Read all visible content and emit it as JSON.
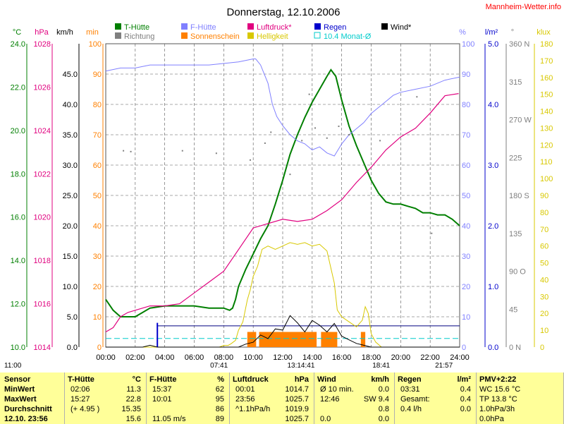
{
  "title": "Donnerstag, 12.10.2006",
  "site": "Mannheim-Wetter.info",
  "colors": {
    "temp": "#007f00",
    "ftemp": "#8080ff",
    "pressure": "#e0007f",
    "sun": "#ff8000",
    "light": "#d8c800",
    "rain": "#0000cc",
    "rain_avg": "#00cccc",
    "wind": "#000000",
    "direction": "#7f7f7f",
    "table_bg": "#ffff99",
    "grid": "#555555"
  },
  "legend": [
    {
      "label": "T-Hütte",
      "color": "#007f00",
      "style": "solid"
    },
    {
      "label": "F-Hütte",
      "color": "#8080ff",
      "style": "solid"
    },
    {
      "label": "Luftdruck*",
      "color": "#e0007f",
      "style": "solid"
    },
    {
      "label": "Regen",
      "color": "#0000cc",
      "style": "solid"
    },
    {
      "label": "Wind*",
      "color": "#000000",
      "style": "solid"
    },
    {
      "label": "Richtung",
      "color": "#7f7f7f",
      "style": "solid"
    },
    {
      "label": "Sonnenschein",
      "color": "#ff8000",
      "style": "solid"
    },
    {
      "label": "Helligkeit",
      "color": "#d8c800",
      "style": "solid"
    },
    {
      "label": "10.4 Monat-Ø",
      "color": "#00cccc",
      "style": "outline"
    }
  ],
  "axes_headers": {
    "temp": "°C",
    "pressure": "hPa",
    "wind": "km/h",
    "sun_min": "min",
    "humidity": "%",
    "rain": "l/m²",
    "direction": "°",
    "light": "klux"
  },
  "axes": {
    "temp": [
      "24.0",
      "22.0",
      "20.0",
      "18.0",
      "16.0",
      "14.0",
      "12.0",
      "10.0"
    ],
    "pressure": [
      "1028",
      "1026",
      "1024",
      "1022",
      "1020",
      "1018",
      "1016",
      "1014"
    ],
    "wind": [
      "45.0",
      "40.0",
      "35.0",
      "30.0",
      "25.0",
      "20.0",
      "15.0",
      "10.0",
      "5.0",
      "0.0"
    ],
    "sun_min": [
      "100",
      "90",
      "80",
      "70",
      "60",
      "50",
      "40",
      "30",
      "20",
      "10",
      "0"
    ],
    "humidity": [
      "100",
      "90",
      "80",
      "70",
      "60",
      "50",
      "40",
      "30",
      "20",
      "10",
      "0"
    ],
    "rain": [
      "5.0",
      "4.0",
      "3.0",
      "2.0",
      "1.0",
      "0.0"
    ],
    "direction": [
      "360 N",
      "315",
      "270 W",
      "225",
      "180 S",
      "135",
      "90 O",
      "45",
      "0 N"
    ],
    "light": [
      "180",
      "170",
      "160",
      "150",
      "140",
      "130",
      "120",
      "110",
      "100",
      "90",
      "80",
      "70",
      "60",
      "50",
      "40",
      "30",
      "20",
      "10",
      "0"
    ]
  },
  "x_ticks": [
    "00:00",
    "02:00",
    "04:00",
    "06:00",
    "08:00",
    "10:00",
    "12:00",
    "14:00",
    "16:00",
    "18:00",
    "20:00",
    "22:00",
    "24:00"
  ],
  "sun_events": {
    "sunrise": "07:41",
    "noon": "13:14:41",
    "sunset": "18:41",
    "moonset": "11:00",
    "moonrise": "21:57"
  },
  "chart_data": {
    "type": "line",
    "x_unit": "hour",
    "x_range": [
      0,
      24
    ],
    "series": [
      {
        "name": "T-Hütte",
        "axis": "°C",
        "range": [
          10,
          24
        ],
        "points": [
          [
            0,
            12.2
          ],
          [
            0.5,
            11.7
          ],
          [
            1,
            11.4
          ],
          [
            2,
            11.4
          ],
          [
            2.5,
            11.6
          ],
          [
            3,
            11.8
          ],
          [
            4,
            11.9
          ],
          [
            5,
            11.9
          ],
          [
            6,
            11.9
          ],
          [
            7,
            11.8
          ],
          [
            8,
            11.8
          ],
          [
            8.4,
            11.7
          ],
          [
            8.6,
            11.8
          ],
          [
            8.8,
            12.2
          ],
          [
            9,
            12.8
          ],
          [
            9.5,
            13.6
          ],
          [
            10,
            14.3
          ],
          [
            10.5,
            15.0
          ],
          [
            11,
            15.6
          ],
          [
            11.5,
            16.6
          ],
          [
            12,
            17.7
          ],
          [
            12.5,
            18.9
          ],
          [
            13,
            19.8
          ],
          [
            13.5,
            20.6
          ],
          [
            14,
            21.3
          ],
          [
            14.5,
            21.9
          ],
          [
            15,
            22.5
          ],
          [
            15.27,
            22.8
          ],
          [
            15.6,
            22.5
          ],
          [
            16,
            21.4
          ],
          [
            16.5,
            20.2
          ],
          [
            17,
            19.3
          ],
          [
            17.5,
            18.5
          ],
          [
            18,
            17.7
          ],
          [
            18.5,
            17.1
          ],
          [
            19,
            16.7
          ],
          [
            19.5,
            16.6
          ],
          [
            20,
            16.6
          ],
          [
            20.5,
            16.5
          ],
          [
            21,
            16.4
          ],
          [
            21.5,
            16.2
          ],
          [
            22,
            16.2
          ],
          [
            22.5,
            16.1
          ],
          [
            23,
            16.1
          ],
          [
            23.5,
            15.9
          ],
          [
            24,
            15.6
          ]
        ]
      },
      {
        "name": "F-Hütte",
        "axis": "%",
        "range": [
          0,
          100
        ],
        "points": [
          [
            0,
            91
          ],
          [
            1,
            92
          ],
          [
            2,
            92
          ],
          [
            3,
            93
          ],
          [
            5,
            93
          ],
          [
            7,
            93
          ],
          [
            9,
            94
          ],
          [
            10,
            95
          ],
          [
            10.17,
            95
          ],
          [
            10.5,
            93
          ],
          [
            11,
            87
          ],
          [
            11.3,
            80
          ],
          [
            11.6,
            76
          ],
          [
            12,
            73
          ],
          [
            12.5,
            70
          ],
          [
            13,
            68
          ],
          [
            13.5,
            67
          ],
          [
            14,
            65
          ],
          [
            14.5,
            66
          ],
          [
            15,
            64
          ],
          [
            15.5,
            63
          ],
          [
            16,
            67
          ],
          [
            16.5,
            70
          ],
          [
            17,
            72
          ],
          [
            17.5,
            74
          ],
          [
            18,
            77
          ],
          [
            18.5,
            79
          ],
          [
            19,
            81
          ],
          [
            19.5,
            83
          ],
          [
            20,
            84
          ],
          [
            21,
            85
          ],
          [
            22,
            86
          ],
          [
            23,
            88
          ],
          [
            24,
            89
          ]
        ]
      },
      {
        "name": "Luftdruck*",
        "axis": "hPa",
        "range": [
          1014,
          1028
        ],
        "points": [
          [
            0,
            1014.7
          ],
          [
            0.5,
            1014.9
          ],
          [
            1,
            1015.4
          ],
          [
            1.5,
            1015.6
          ],
          [
            2,
            1015.7
          ],
          [
            3,
            1015.9
          ],
          [
            4,
            1015.9
          ],
          [
            5,
            1016.0
          ],
          [
            6,
            1016.5
          ],
          [
            7,
            1017.0
          ],
          [
            8,
            1017.5
          ],
          [
            9,
            1018.5
          ],
          [
            10,
            1019.5
          ],
          [
            11,
            1019.7
          ],
          [
            12,
            1019.9
          ],
          [
            13,
            1019.8
          ],
          [
            14,
            1019.9
          ],
          [
            15,
            1020.3
          ],
          [
            16,
            1020.8
          ],
          [
            17,
            1021.6
          ],
          [
            18,
            1022.3
          ],
          [
            19,
            1023.1
          ],
          [
            20,
            1023.7
          ],
          [
            21,
            1024.1
          ],
          [
            22,
            1024.8
          ],
          [
            23,
            1025.6
          ],
          [
            23.93,
            1025.7
          ]
        ]
      },
      {
        "name": "Helligkeit",
        "axis": "klux",
        "range": [
          0,
          180
        ],
        "points": [
          [
            0,
            0
          ],
          [
            7.7,
            0
          ],
          [
            8.0,
            1
          ],
          [
            8.3,
            1
          ],
          [
            8.5,
            2
          ],
          [
            8.8,
            4
          ],
          [
            9,
            10
          ],
          [
            9.3,
            15
          ],
          [
            9.6,
            28
          ],
          [
            9.8,
            34
          ],
          [
            10,
            42
          ],
          [
            10.3,
            48
          ],
          [
            10.6,
            58
          ],
          [
            11,
            60
          ],
          [
            11.5,
            58
          ],
          [
            12,
            60
          ],
          [
            12.5,
            62
          ],
          [
            13,
            61
          ],
          [
            13.5,
            62
          ],
          [
            14,
            60
          ],
          [
            14.5,
            61
          ],
          [
            15,
            57
          ],
          [
            15.5,
            38
          ],
          [
            15.7,
            22
          ],
          [
            16,
            18
          ],
          [
            16.5,
            15
          ],
          [
            17,
            12
          ],
          [
            17.4,
            16
          ],
          [
            17.6,
            24
          ],
          [
            17.8,
            20
          ],
          [
            18,
            8
          ],
          [
            18.3,
            3
          ],
          [
            18.7,
            0
          ],
          [
            24,
            0
          ]
        ]
      },
      {
        "name": "Wind*",
        "axis": "km/h",
        "range": [
          0,
          50
        ],
        "points": [
          [
            0,
            0
          ],
          [
            2.5,
            0
          ],
          [
            3,
            0.3
          ],
          [
            3.5,
            0
          ],
          [
            9,
            0
          ],
          [
            9.5,
            0.5
          ],
          [
            10,
            0.8
          ],
          [
            10.5,
            2.0
          ],
          [
            11,
            1.4
          ],
          [
            11.5,
            3.0
          ],
          [
            12,
            2.8
          ],
          [
            12.5,
            5.2
          ],
          [
            13,
            4.0
          ],
          [
            13.5,
            2.5
          ],
          [
            14,
            4.4
          ],
          [
            14.5,
            3.6
          ],
          [
            15,
            2.5
          ],
          [
            15.5,
            3.9
          ],
          [
            16,
            1.8
          ],
          [
            16.5,
            1.2
          ],
          [
            17,
            0.6
          ],
          [
            17.5,
            0.3
          ],
          [
            18,
            0
          ],
          [
            24,
            0
          ]
        ]
      }
    ],
    "sunshine_min": {
      "name": "Sonnenschein",
      "axis": "min",
      "bars": [
        [
          9.6,
          10.2,
          5
        ],
        [
          10.4,
          14.3,
          5
        ],
        [
          14.6,
          15.7,
          5
        ],
        [
          17.3,
          17.6,
          5
        ]
      ]
    },
    "direction_dots": {
      "name": "Richtung",
      "axis": "°",
      "range": [
        0,
        360
      ],
      "points": [
        [
          1.2,
          233
        ],
        [
          1.7,
          232
        ],
        [
          5.2,
          233
        ],
        [
          7.5,
          230
        ],
        [
          9.8,
          222
        ],
        [
          10.8,
          242
        ],
        [
          11.2,
          255
        ],
        [
          12.5,
          205
        ],
        [
          13.3,
          245
        ],
        [
          13.8,
          300
        ],
        [
          14.2,
          260
        ],
        [
          15.0,
          248
        ],
        [
          15.8,
          262
        ],
        [
          16.5,
          252
        ],
        [
          18.6,
          245
        ],
        [
          21.1,
          297
        ],
        [
          22.1,
          135
        ]
      ]
    },
    "rain": {
      "name": "Regen",
      "axis": "l/m²",
      "events": [
        [
          3.5,
          0.4
        ]
      ],
      "total": 0.4
    },
    "monthly_avg": {
      "name": "10.4 Monat-Ø",
      "axis": "°C",
      "value": 10.4
    },
    "rain_level": {
      "axis": "l/m²",
      "value": 0.35
    }
  },
  "table": {
    "rows": [
      "Sensor",
      "MinWert",
      "MaxWert",
      "Durchschnitt",
      "12.10. 23:56"
    ],
    "columns": [
      {
        "head": "T-Hütte",
        "unit": "°C",
        "cells": [
          [
            "02:06",
            "11.3"
          ],
          [
            "15:27",
            "22.8"
          ],
          [
            "(+ 4.95 )",
            "15.35"
          ],
          [
            "",
            "15.6"
          ]
        ]
      },
      {
        "head": "F-Hütte",
        "unit": "%",
        "cells": [
          [
            "15:37",
            "62"
          ],
          [
            "10:01",
            "95"
          ],
          [
            "",
            "86"
          ],
          [
            "11.05 m/s",
            "89"
          ]
        ]
      },
      {
        "head": "Luftdruck",
        "unit": "hPa",
        "cells": [
          [
            "00:01",
            "1014.7"
          ],
          [
            "23:56",
            "1025.7"
          ],
          [
            "^1.1hPa/h",
            "1019.9"
          ],
          [
            "",
            "1025.7"
          ]
        ]
      },
      {
        "head": "Wind",
        "unit": "km/h",
        "cells": [
          [
            "Ø 10 min.",
            "0.0"
          ],
          [
            "12:46",
            "SW 9.4"
          ],
          [
            "",
            "0.8"
          ],
          [
            "0.0",
            "0.0"
          ]
        ]
      },
      {
        "head": "Regen",
        "unit": "l/m²",
        "cells": [
          [
            "03:31",
            "0.4"
          ],
          [
            "Gesamt:",
            "0.4"
          ],
          [
            "0.4 l/h",
            "0.0"
          ]
        ]
      },
      {
        "head": "PMV+2:22",
        "unit": "",
        "cells": [
          [
            "WC 15.6 °C"
          ],
          [
            "TP 13.8 °C"
          ],
          [
            "1.0hPa/3h"
          ],
          [
            "0.0hPa"
          ]
        ]
      }
    ]
  }
}
